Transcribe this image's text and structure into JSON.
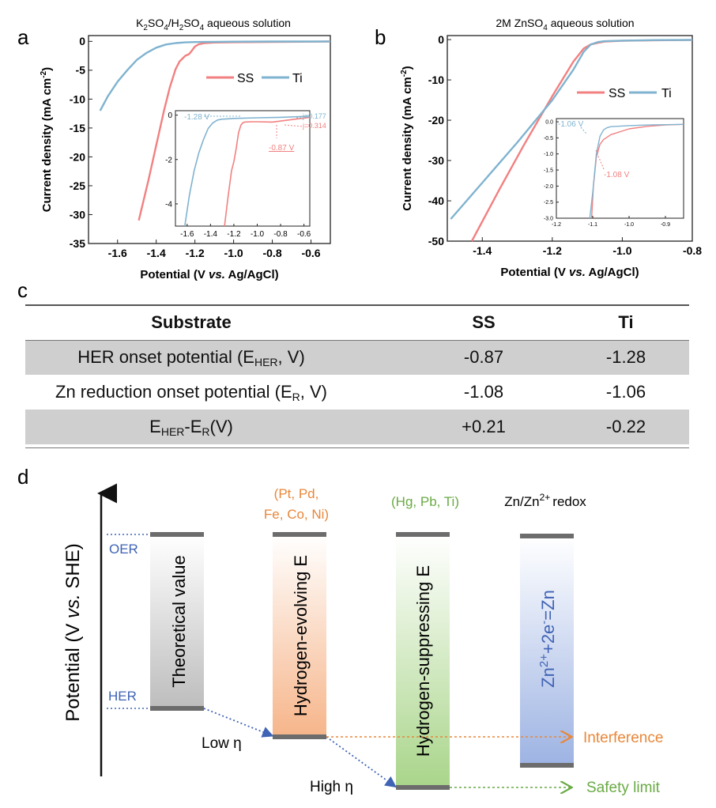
{
  "panel_a": {
    "letter": "a",
    "title_parts": [
      "K",
      "2",
      "SO",
      "4",
      "/H",
      "2",
      "SO",
      "4",
      " aqueous solution"
    ],
    "legend": [
      "SS",
      "Ti"
    ],
    "inset_labels": {
      "ti_onset": "-1.28 V",
      "ss_onset": "-0.87 V",
      "ti_j": "j=0.177",
      "ss_j": "j=0.314"
    }
  },
  "panel_b": {
    "letter": "b",
    "title_parts": [
      "2M ZnSO",
      "4",
      " aqueous solution"
    ],
    "legend": [
      "SS",
      "Ti"
    ],
    "inset_labels": {
      "ti_onset": "-1.06 V",
      "ss_onset": "-1.08 V"
    }
  },
  "colors": {
    "ss": "#f28080",
    "ti": "#7fb3cf",
    "orange": "#e8873a",
    "green": "#6aaa45",
    "blue": "#3f63b5",
    "bar_top": "#6c6c6c"
  },
  "chart_data": [
    {
      "type": "line",
      "name": "panel-a",
      "title": "K2SO4/H2SO4 aqueous solution",
      "xlabel": "Potential (V vs. Ag/AgCl)",
      "ylabel": "Current density (mA cm-2)",
      "xlim": [
        -1.75,
        -0.5
      ],
      "ylim": [
        -35,
        1
      ],
      "xticks": [
        -1.6,
        -1.4,
        -1.2,
        -1.0,
        -0.8,
        -0.6
      ],
      "yticks": [
        0,
        -5,
        -10,
        -15,
        -20,
        -25,
        -30,
        -35
      ],
      "series": [
        {
          "name": "SS",
          "color": "#f28080",
          "x": [
            -1.49,
            -1.44,
            -1.4,
            -1.36,
            -1.33,
            -1.3,
            -1.28,
            -1.25,
            -1.23,
            -1.22,
            -1.2,
            -1.18,
            -1.15,
            -1.1,
            -1.0,
            -0.8,
            -0.6,
            -0.5
          ],
          "y": [
            -31,
            -24,
            -18,
            -12,
            -8,
            -4.8,
            -3.5,
            -2.5,
            -2.2,
            -1.8,
            -0.9,
            -0.5,
            -0.3,
            -0.2,
            -0.15,
            -0.1,
            -0.05,
            -0.03
          ]
        },
        {
          "name": "Ti",
          "color": "#7fb3cf",
          "x": [
            -1.69,
            -1.65,
            -1.6,
            -1.55,
            -1.5,
            -1.45,
            -1.4,
            -1.35,
            -1.3,
            -1.25,
            -1.2,
            -1.1,
            -1.0,
            -0.8,
            -0.6,
            -0.5
          ],
          "y": [
            -12,
            -9.5,
            -7,
            -5,
            -3.2,
            -2,
            -1.1,
            -0.55,
            -0.3,
            -0.18,
            -0.12,
            -0.08,
            -0.05,
            -0.03,
            -0.02,
            -0.01
          ]
        }
      ],
      "inset": {
        "xlim": [
          -1.7,
          -0.55
        ],
        "ylim": [
          -5,
          0.2
        ],
        "xticks": [
          -1.6,
          -1.4,
          -1.2,
          -1.0,
          -0.8,
          -0.6
        ],
        "yticks": [
          0,
          -2,
          -4
        ],
        "series": [
          {
            "name": "SS",
            "x": [
              -1.28,
              -1.25,
              -1.22,
              -1.2,
              -1.18,
              -1.16,
              -1.14,
              -1.12,
              -1.1,
              -1.05,
              -1.0,
              -0.9,
              -0.87,
              -0.7,
              -0.55
            ],
            "y": [
              -5,
              -3.7,
              -2.5,
              -2.1,
              -1.5,
              -0.8,
              -0.45,
              -0.33,
              -0.31,
              -0.3,
              -0.3,
              -0.31,
              -0.314,
              -0.2,
              -0.1
            ]
          },
          {
            "name": "Ti",
            "x": [
              -1.62,
              -1.58,
              -1.54,
              -1.5,
              -1.46,
              -1.42,
              -1.38,
              -1.34,
              -1.3,
              -1.28,
              -1.2,
              -1.0,
              -0.8,
              -0.55
            ],
            "y": [
              -5,
              -3.6,
              -2.5,
              -1.7,
              -1.1,
              -0.6,
              -0.35,
              -0.22,
              -0.18,
              -0.177,
              -0.15,
              -0.12,
              -0.1,
              -0.05
            ]
          }
        ]
      }
    },
    {
      "type": "line",
      "name": "panel-b",
      "title": "2M ZnSO4 aqueous solution",
      "xlabel": "Potential (V vs. Ag/AgCl)",
      "ylabel": "Current density (mA cm-2)",
      "xlim": [
        -1.5,
        -0.8
      ],
      "ylim": [
        -50,
        1
      ],
      "xticks": [
        -1.4,
        -1.2,
        -1.0,
        -0.8
      ],
      "yticks": [
        0,
        -10,
        -20,
        -30,
        -40,
        -50
      ],
      "series": [
        {
          "name": "SS",
          "color": "#f28080",
          "x": [
            -1.43,
            -1.35,
            -1.28,
            -1.2,
            -1.14,
            -1.11,
            -1.09,
            -1.07,
            -1.05,
            -1.0,
            -0.9,
            -0.8
          ],
          "y": [
            -50,
            -37,
            -26,
            -14,
            -5.5,
            -2.2,
            -1.2,
            -0.8,
            -0.5,
            -0.3,
            -0.15,
            -0.1
          ]
        },
        {
          "name": "Ti",
          "color": "#7fb3cf",
          "x": [
            -1.49,
            -1.4,
            -1.3,
            -1.2,
            -1.14,
            -1.11,
            -1.09,
            -1.07,
            -1.05,
            -1.0,
            -0.9,
            -0.8
          ],
          "y": [
            -44.5,
            -35.5,
            -25.5,
            -15,
            -7.5,
            -3,
            -1.2,
            -0.6,
            -0.4,
            -0.25,
            -0.12,
            -0.08
          ]
        }
      ],
      "inset": {
        "xlim": [
          -1.2,
          -0.85
        ],
        "ylim": [
          -3.0,
          0.1
        ],
        "xticks": [
          -1.2,
          -1.1,
          -1.0,
          -0.9
        ],
        "yticks": [
          0.0,
          -0.5,
          -1.0,
          -1.5,
          -2.0,
          -2.5,
          -3.0
        ],
        "series": [
          {
            "name": "SS",
            "x": [
              -1.103,
              -1.098,
              -1.09,
              -1.08,
              -1.07,
              -1.05,
              -1.0,
              -0.95,
              -0.9,
              -0.85
            ],
            "y": [
              -3.0,
              -2.0,
              -1.1,
              -0.7,
              -0.55,
              -0.4,
              -0.22,
              -0.14,
              -0.1,
              -0.08
            ]
          },
          {
            "name": "Ti",
            "x": [
              -1.108,
              -1.1,
              -1.09,
              -1.08,
              -1.07,
              -1.06,
              -1.05,
              -1.0,
              -0.95,
              -0.9,
              -0.85
            ],
            "y": [
              -3.0,
              -2.2,
              -1.0,
              -0.45,
              -0.25,
              -0.18,
              -0.15,
              -0.12,
              -0.1,
              -0.09,
              -0.08
            ]
          }
        ]
      }
    }
  ],
  "table": {
    "letter": "c",
    "headers": [
      "Substrate",
      "SS",
      "Ti"
    ],
    "rows": [
      {
        "label_main": "HER onset potential (E",
        "label_sub": "HER",
        "label_tail": ", V)",
        "ss": "-0.87",
        "ti": "-1.28"
      },
      {
        "label_main": "Zn reduction onset potential (E",
        "label_sub": "R",
        "label_tail": ", V)",
        "ss": "-1.08",
        "ti": "-1.06"
      },
      {
        "label_e1": "E",
        "label_sub1": "HER",
        "label_mid": "-E",
        "label_sub2": "R",
        "label_tail": "(V)",
        "ss": "+0.21",
        "ti": "-0.22"
      }
    ]
  },
  "panel_d": {
    "letter": "d",
    "ylabel_parts": [
      "Potential (V ",
      "vs.",
      " SHE)"
    ],
    "oer": "OER",
    "her": "HER",
    "col_headers": {
      "evolving_line1": "(Pt, Pd,",
      "evolving_line2": "Fe, Co, Ni)",
      "suppressing": "(Hg, Pb, Ti)",
      "zn_main": "Zn/Zn",
      "zn_sup": "2+",
      "zn_tail": "redox"
    },
    "bars": {
      "theoretical": "Theoretical value",
      "evolving": "Hydrogen-evolving E",
      "suppressing": "Hydrogen-suppressing E",
      "zn_p1": "Zn",
      "zn_s1": "2+",
      "zn_p2": "+2e",
      "zn_s2": "-",
      "zn_p3": "=Zn"
    },
    "low_eta": "Low η",
    "high_eta": "High η",
    "interference": "Interference",
    "safety": "Safety limit"
  }
}
